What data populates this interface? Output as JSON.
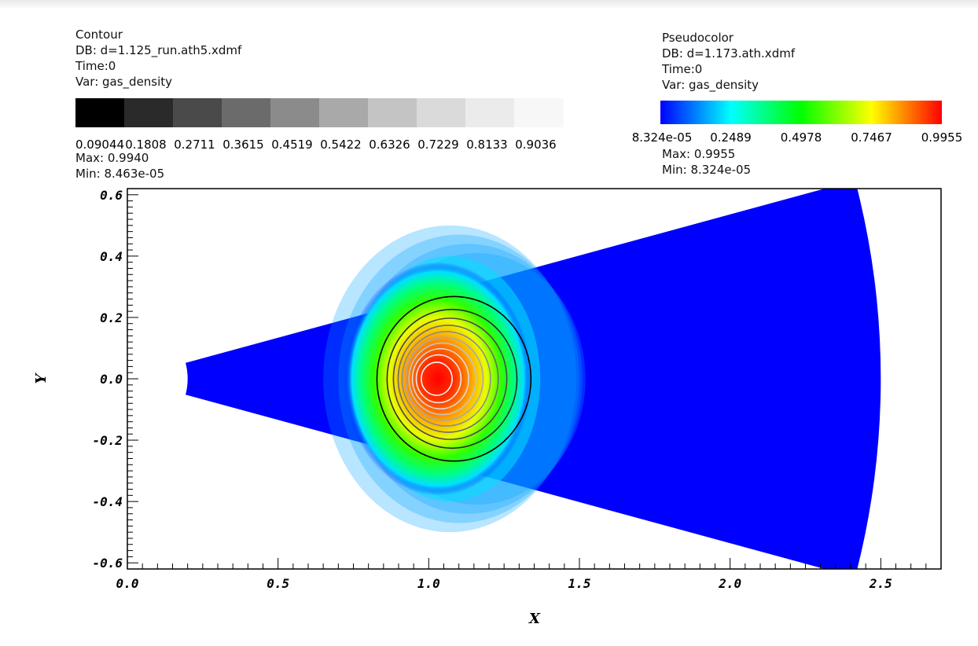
{
  "contour_legend": {
    "plot_type": "Contour",
    "db": "DB: d=1.125_run.ath5.xdmf",
    "time": "Time:0",
    "var": "Var: gas_density",
    "levels": [
      "0.09044",
      "0.1808",
      "0.2711",
      "0.3615",
      "0.4519",
      "0.5422",
      "0.6326",
      "0.7229",
      "0.8133",
      "0.9036"
    ],
    "level_colors": [
      "#000000",
      "#2a2a2a",
      "#4a4a4a",
      "#6b6b6b",
      "#8b8b8b",
      "#a9a9a9",
      "#c4c4c4",
      "#dadada",
      "#ebebeb",
      "#f7f7f7"
    ],
    "max": "Max: 0.9940",
    "min": "Min: 8.463e-05"
  },
  "pseudocolor_legend": {
    "plot_type": "Pseudocolor",
    "db": "DB: d=1.173.ath.xdmf",
    "time": "Time:0",
    "var": "Var: gas_density",
    "ticks": [
      "8.324e-05",
      "0.2489",
      "0.4978",
      "0.7467",
      "0.9955"
    ],
    "tick_values": [
      8.324e-05,
      0.2489,
      0.4978,
      0.7467,
      0.9955
    ],
    "max": "Max: 0.9955",
    "min": "Min: 8.324e-05"
  },
  "chart_data": {
    "type": "heatmap",
    "field": "gas_density",
    "xlabel": "X",
    "ylabel": "Y",
    "xlim": [
      0.0,
      2.7
    ],
    "ylim": [
      -0.62,
      0.62
    ],
    "x_ticks": [
      0.0,
      0.5,
      1.0,
      1.5,
      2.0,
      2.5
    ],
    "x_tick_labels": [
      "0.0",
      "0.5",
      "1.0",
      "1.5",
      "2.0",
      "2.5"
    ],
    "y_ticks": [
      0.6,
      0.4,
      0.2,
      0.0,
      -0.2,
      -0.4,
      -0.6
    ],
    "y_tick_labels": [
      "0.6",
      "0.4",
      "0.2",
      "0.0",
      "-0.2",
      "-0.4",
      "-0.6"
    ],
    "domain": {
      "r_inner": 0.2,
      "r_outer": 2.5,
      "half_angle_deg": 15
    },
    "blob": {
      "center": [
        1.02,
        0.0
      ],
      "peak": 0.9955,
      "background": 8.324e-05
    },
    "contour_levels": [
      0.09044,
      0.1808,
      0.2711,
      0.3615,
      0.4519,
      0.5422,
      0.6326,
      0.7229,
      0.8133,
      0.9036
    ],
    "colormap": [
      "#0000ff",
      "#00ffff",
      "#00ff00",
      "#ffff00",
      "#ff0000"
    ]
  }
}
